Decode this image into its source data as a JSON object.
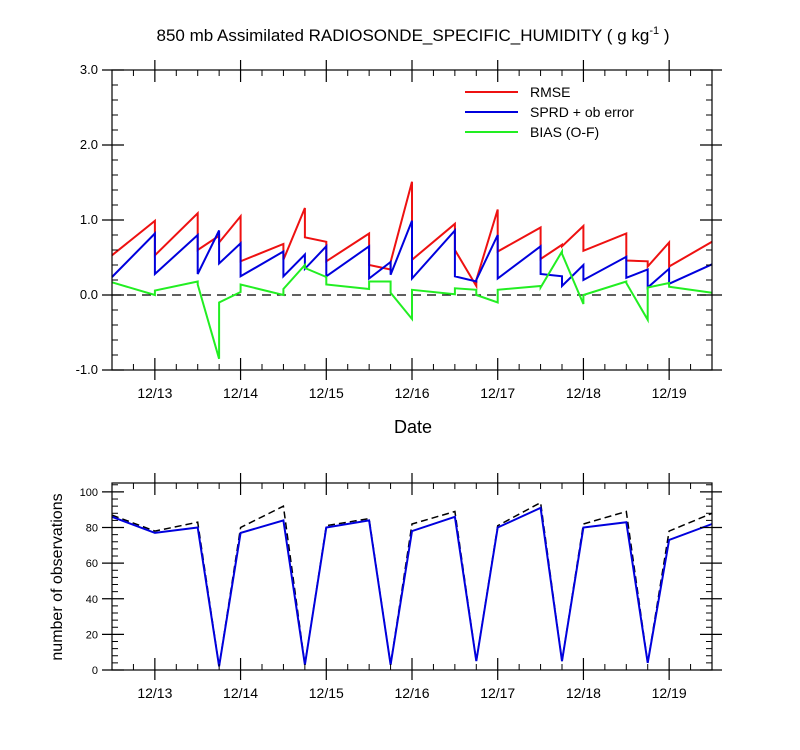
{
  "chart_data": [
    {
      "type": "line",
      "title": "850 mb Assimilated RADIOSONDE_SPECIFIC_HUMIDITY ( g kg",
      "title_exponent": "-1",
      "title_suffix": " )",
      "xlabel": "Date",
      "ylabel": "",
      "xlim": [
        12.5,
        19.5
      ],
      "ylim": [
        -1.0,
        3.0
      ],
      "yticks": [
        -1.0,
        0.0,
        1.0,
        2.0,
        3.0
      ],
      "ytick_labels": [
        "-1.0",
        "0.0",
        "1.0",
        "2.0",
        "3.0"
      ],
      "xticks": [
        13,
        14,
        15,
        16,
        17,
        18,
        19
      ],
      "xtick_labels": [
        "12/13",
        "12/14",
        "12/15",
        "12/16",
        "12/17",
        "12/18",
        "12/19"
      ],
      "zero_line": true,
      "grid": false,
      "legend_position": "top-right",
      "series": [
        {
          "name": "RMSE",
          "color": "#ee1111",
          "x": [
            12.5,
            13.0,
            13.0,
            13.5,
            13.5,
            13.75,
            13.75,
            14.0,
            14.0,
            14.5,
            14.5,
            14.75,
            14.75,
            15.0,
            15.0,
            15.5,
            15.5,
            15.75,
            15.75,
            16.0,
            16.0,
            16.5,
            16.5,
            16.75,
            16.75,
            17.0,
            17.0,
            17.5,
            17.5,
            17.75,
            17.75,
            18.0,
            18.0,
            18.5,
            18.5,
            18.75,
            18.75,
            19.0,
            19.0,
            19.5
          ],
          "y": [
            0.53,
            0.99,
            0.53,
            1.09,
            0.6,
            0.79,
            0.7,
            1.05,
            0.45,
            0.68,
            0.47,
            1.16,
            0.77,
            0.71,
            0.45,
            0.82,
            0.4,
            0.34,
            0.44,
            1.51,
            0.47,
            0.95,
            0.6,
            0.12,
            0.2,
            1.14,
            0.58,
            0.9,
            0.48,
            0.67,
            0.65,
            0.92,
            0.59,
            0.82,
            0.46,
            0.45,
            0.38,
            0.7,
            0.38,
            0.71
          ]
        },
        {
          "name": "SPRD + ob error",
          "color": "#0000dd",
          "x": [
            12.5,
            13.0,
            13.0,
            13.5,
            13.5,
            13.75,
            13.75,
            14.0,
            14.0,
            14.5,
            14.5,
            14.75,
            14.75,
            15.0,
            15.0,
            15.5,
            15.5,
            15.75,
            15.75,
            16.0,
            16.0,
            16.5,
            16.5,
            16.75,
            16.75,
            17.0,
            17.0,
            17.5,
            17.5,
            17.75,
            17.75,
            18.0,
            18.0,
            18.5,
            18.5,
            18.75,
            18.75,
            19.0,
            19.0,
            19.5
          ],
          "y": [
            0.24,
            0.82,
            0.28,
            0.8,
            0.28,
            0.86,
            0.42,
            0.69,
            0.25,
            0.58,
            0.25,
            0.54,
            0.35,
            0.65,
            0.25,
            0.65,
            0.22,
            0.44,
            0.27,
            0.99,
            0.22,
            0.86,
            0.25,
            0.18,
            0.2,
            0.8,
            0.22,
            0.65,
            0.28,
            0.25,
            0.12,
            0.4,
            0.2,
            0.51,
            0.23,
            0.34,
            0.1,
            0.35,
            0.15,
            0.41
          ]
        },
        {
          "name": "BIAS (O-F)",
          "color": "#22ee22",
          "x": [
            12.5,
            13.0,
            13.0,
            13.5,
            13.5,
            13.75,
            13.75,
            14.0,
            14.0,
            14.5,
            14.5,
            14.75,
            14.75,
            15.0,
            15.0,
            15.5,
            15.5,
            15.75,
            15.75,
            16.0,
            16.0,
            16.5,
            16.5,
            16.75,
            16.75,
            17.0,
            17.0,
            17.5,
            17.5,
            17.75,
            17.75,
            18.0,
            18.0,
            18.5,
            18.5,
            18.75,
            18.75,
            19.0,
            19.0,
            19.5
          ],
          "y": [
            0.17,
            0.0,
            0.06,
            0.18,
            0.14,
            -0.85,
            -0.1,
            0.04,
            0.14,
            0.0,
            0.08,
            0.4,
            0.36,
            0.24,
            0.14,
            0.08,
            0.18,
            0.18,
            0.03,
            -0.32,
            0.07,
            0.01,
            0.09,
            0.07,
            0.0,
            -0.1,
            0.07,
            0.12,
            0.1,
            0.58,
            0.55,
            -0.12,
            0.0,
            0.18,
            0.16,
            -0.33,
            0.1,
            0.16,
            0.11,
            0.03
          ]
        }
      ]
    },
    {
      "type": "line",
      "title": "",
      "xlabel": "",
      "ylabel": "number of observations",
      "xlim": [
        12.5,
        19.5
      ],
      "ylim": [
        0,
        105
      ],
      "yticks": [
        0,
        20,
        40,
        60,
        80,
        100
      ],
      "ytick_labels": [
        "0",
        "20",
        "40",
        "60",
        "80",
        "100"
      ],
      "xticks": [
        13,
        14,
        15,
        16,
        17,
        18,
        19
      ],
      "xtick_labels": [
        "12/13",
        "12/14",
        "12/15",
        "12/16",
        "12/17",
        "12/18",
        "12/19"
      ],
      "grid": false,
      "series": [
        {
          "style": "dashed",
          "color": "#000000",
          "x": [
            12.5,
            13.0,
            13.5,
            13.75,
            14.0,
            14.5,
            14.75,
            15.0,
            15.5,
            15.75,
            16.0,
            16.5,
            16.75,
            17.0,
            17.5,
            17.75,
            18.0,
            18.5,
            18.75,
            19.0,
            19.5
          ],
          "y": [
            87,
            78,
            83,
            2,
            80,
            92,
            3,
            81,
            85,
            3,
            82,
            89,
            5,
            81,
            94,
            5,
            82,
            89,
            4,
            78,
            88
          ]
        },
        {
          "style": "solid",
          "color": "#0000dd",
          "x": [
            12.5,
            13.0,
            13.5,
            13.75,
            14.0,
            14.5,
            14.75,
            15.0,
            15.5,
            15.75,
            16.0,
            16.5,
            16.75,
            17.0,
            17.5,
            17.75,
            18.0,
            18.5,
            18.75,
            19.0,
            19.5
          ],
          "y": [
            86,
            77,
            80,
            2,
            77,
            84,
            3,
            80,
            84,
            3,
            78,
            86,
            5,
            80,
            91,
            5,
            80,
            83,
            4,
            73,
            82
          ]
        }
      ]
    }
  ]
}
